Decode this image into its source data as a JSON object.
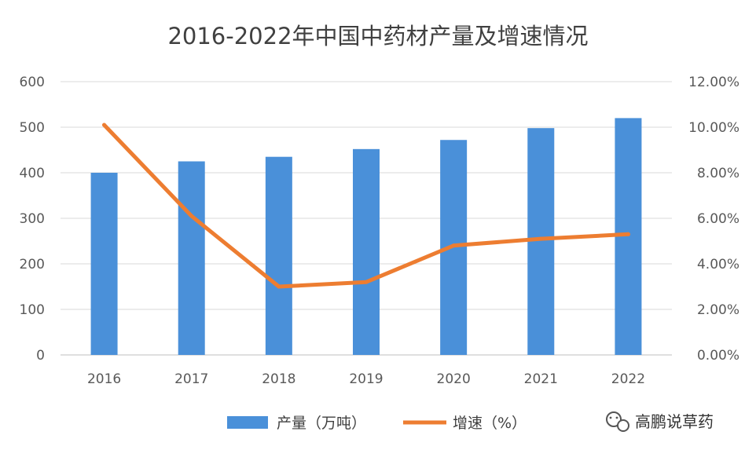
{
  "chart_data": {
    "type": "bar",
    "title": "2016-2022年中国中药材产量及增速情况",
    "categories": [
      "2016",
      "2017",
      "2018",
      "2019",
      "2020",
      "2021",
      "2022"
    ],
    "series": [
      {
        "name": "产量（万吨）",
        "type": "bar",
        "axis": "left",
        "color": "#4a90d9",
        "values": [
          400,
          425,
          435,
          452,
          472,
          498,
          520
        ]
      },
      {
        "name": "增速（%）",
        "type": "line",
        "axis": "right",
        "color": "#ed7d31",
        "values": [
          10.1,
          6.1,
          3.0,
          3.2,
          4.8,
          5.1,
          5.3
        ]
      }
    ],
    "y_left": {
      "min": 0,
      "max": 600,
      "ticks": [
        "0",
        "100",
        "200",
        "300",
        "400",
        "500",
        "600"
      ]
    },
    "y_right": {
      "min": 0,
      "max": 12,
      "ticks": [
        "0.00%",
        "2.00%",
        "4.00%",
        "6.00%",
        "8.00%",
        "10.00%",
        "12.00%"
      ]
    },
    "grid": true,
    "legend_position": "bottom"
  },
  "watermark": {
    "text": "高鹏说草药",
    "icon": "wechat-icon"
  }
}
